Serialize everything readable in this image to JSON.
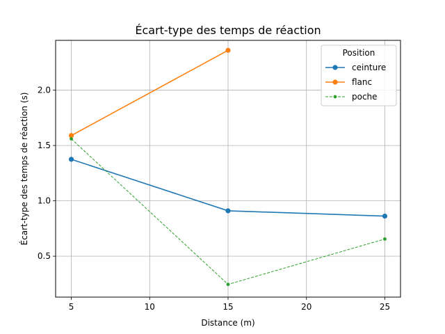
{
  "chart_data": {
    "type": "line",
    "title": "Écart-type des temps de réaction",
    "xlabel": "Distance (m)",
    "ylabel": "Écart-type des temps de réaction (s)",
    "xlim": [
      4,
      26
    ],
    "ylim": [
      0.13,
      2.45
    ],
    "xticks": [
      5,
      10,
      15,
      20,
      25
    ],
    "xtick_labels": [
      "5",
      "10",
      "15",
      "20",
      "25"
    ],
    "yticks": [
      0.5,
      1.0,
      1.5,
      2.0
    ],
    "ytick_labels": [
      "0.5",
      "1.0",
      "1.5",
      "2.0"
    ],
    "grid": true,
    "legend": {
      "title": "Position",
      "placement": "top-right"
    },
    "series": [
      {
        "name": "ceinture",
        "x": [
          5,
          15,
          25
        ],
        "y": [
          1.375,
          0.91,
          0.862
        ],
        "color": "#1f77b4",
        "style": "solid",
        "marker": "circle"
      },
      {
        "name": "flanc",
        "x": [
          5,
          15
        ],
        "y": [
          1.59,
          2.36
        ],
        "color": "#ff7f0e",
        "style": "solid",
        "marker": "circle"
      },
      {
        "name": "poche",
        "x": [
          5,
          15,
          25
        ],
        "y": [
          1.56,
          0.245,
          0.655
        ],
        "color": "#2ca02c",
        "style": "dashed",
        "marker": "small-circle"
      }
    ]
  }
}
